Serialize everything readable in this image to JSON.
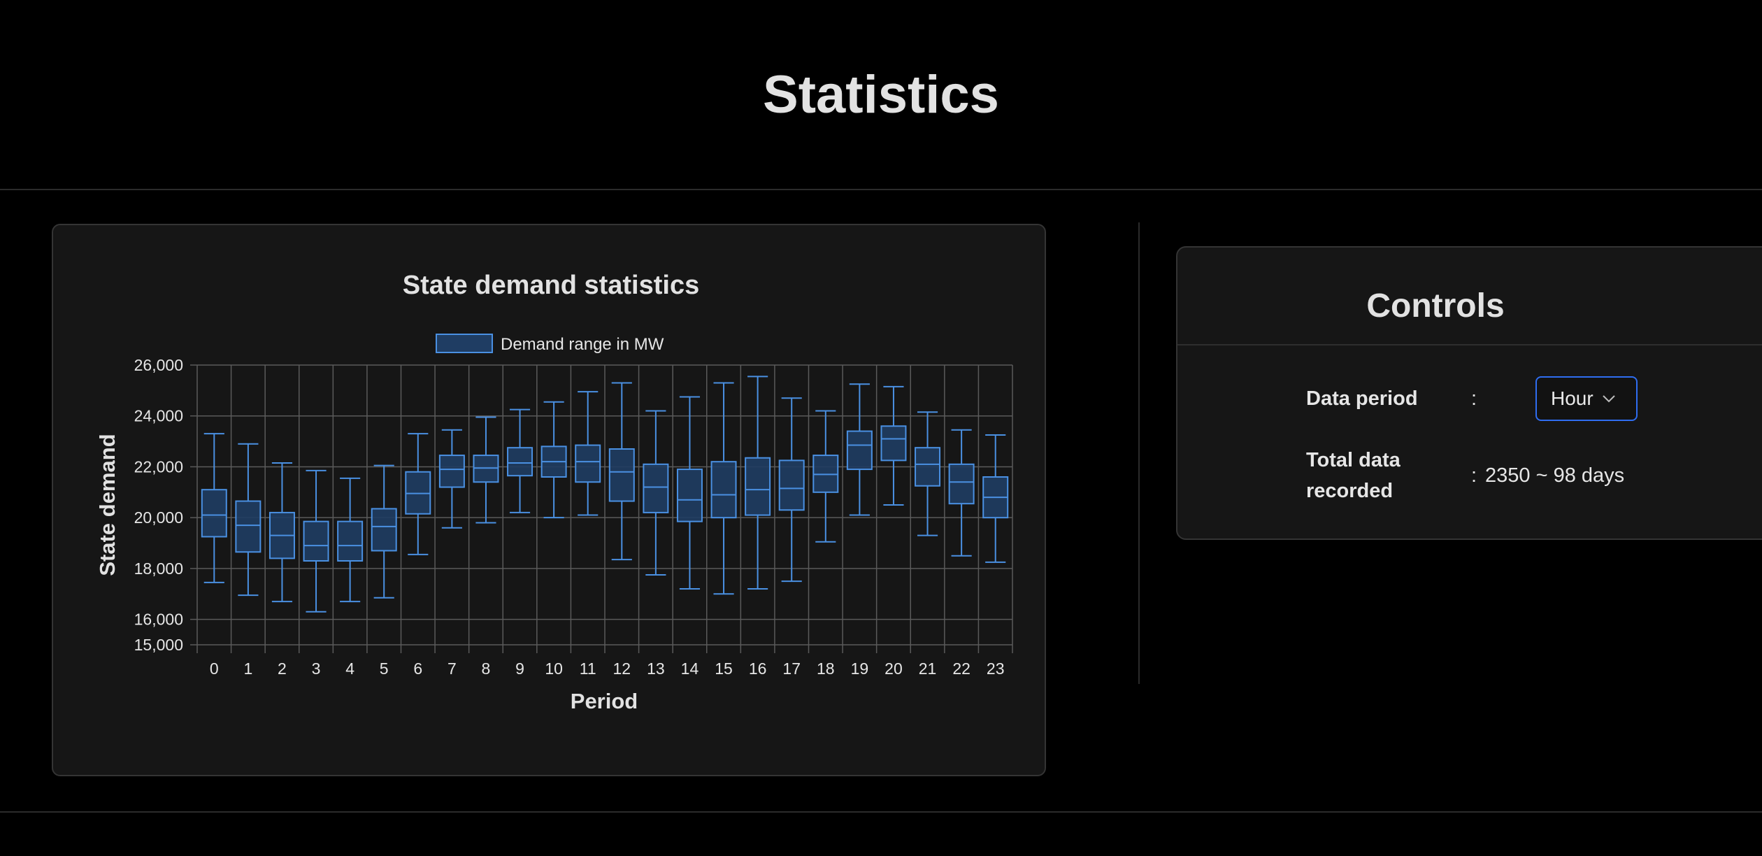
{
  "page": {
    "title": "Statistics"
  },
  "chart_card": {
    "title": "State demand statistics",
    "legend_label": "Demand range in MW",
    "xlabel": "Period",
    "ylabel": "State demand"
  },
  "chart_data": {
    "type": "boxplot",
    "title": "State demand statistics",
    "xlabel": "Period",
    "ylabel": "State demand",
    "ylim": [
      15000,
      26000
    ],
    "yticks": [
      "15,000",
      "16,000",
      "18,000",
      "20,000",
      "22,000",
      "24,000",
      "26,000"
    ],
    "ytick_values": [
      15000,
      16000,
      18000,
      20000,
      22000,
      24000,
      26000
    ],
    "legend": [
      {
        "name": "Demand range in MW",
        "placement": "top-center"
      }
    ],
    "grid": true,
    "categories": [
      "0",
      "1",
      "2",
      "3",
      "4",
      "5",
      "6",
      "7",
      "8",
      "9",
      "10",
      "11",
      "12",
      "13",
      "14",
      "15",
      "16",
      "17",
      "18",
      "19",
      "20",
      "21",
      "22",
      "23"
    ],
    "series": [
      {
        "name": "Demand range in MW",
        "color": "#4a90e2",
        "boxes": [
          {
            "min": 17450,
            "q1": 19250,
            "median": 20100,
            "q3": 21100,
            "max": 23300
          },
          {
            "min": 16950,
            "q1": 18650,
            "median": 19700,
            "q3": 20650,
            "max": 22900
          },
          {
            "min": 16700,
            "q1": 18400,
            "median": 19300,
            "q3": 20200,
            "max": 22150
          },
          {
            "min": 16300,
            "q1": 18300,
            "median": 18900,
            "q3": 19850,
            "max": 21850
          },
          {
            "min": 16700,
            "q1": 18300,
            "median": 18900,
            "q3": 19850,
            "max": 21550
          },
          {
            "min": 16850,
            "q1": 18700,
            "median": 19650,
            "q3": 20350,
            "max": 22050
          },
          {
            "min": 18550,
            "q1": 20150,
            "median": 20950,
            "q3": 21800,
            "max": 23300
          },
          {
            "min": 19600,
            "q1": 21200,
            "median": 21900,
            "q3": 22450,
            "max": 23450
          },
          {
            "min": 19800,
            "q1": 21400,
            "median": 21950,
            "q3": 22450,
            "max": 23950
          },
          {
            "min": 20200,
            "q1": 21650,
            "median": 22150,
            "q3": 22750,
            "max": 24250
          },
          {
            "min": 20000,
            "q1": 21600,
            "median": 22200,
            "q3": 22800,
            "max": 24550
          },
          {
            "min": 20100,
            "q1": 21400,
            "median": 22200,
            "q3": 22850,
            "max": 24950
          },
          {
            "min": 18350,
            "q1": 20650,
            "median": 21800,
            "q3": 22700,
            "max": 25300
          },
          {
            "min": 17750,
            "q1": 20200,
            "median": 21200,
            "q3": 22100,
            "max": 24200
          },
          {
            "min": 17200,
            "q1": 19850,
            "median": 20700,
            "q3": 21900,
            "max": 24750
          },
          {
            "min": 17000,
            "q1": 20000,
            "median": 20900,
            "q3": 22200,
            "max": 25300
          },
          {
            "min": 17200,
            "q1": 20100,
            "median": 21100,
            "q3": 22350,
            "max": 25550
          },
          {
            "min": 17500,
            "q1": 20300,
            "median": 21150,
            "q3": 22250,
            "max": 24700
          },
          {
            "min": 19050,
            "q1": 21000,
            "median": 21700,
            "q3": 22450,
            "max": 24200
          },
          {
            "min": 20100,
            "q1": 21900,
            "median": 22850,
            "q3": 23400,
            "max": 25250
          },
          {
            "min": 20500,
            "q1": 22250,
            "median": 23100,
            "q3": 23600,
            "max": 25150
          },
          {
            "min": 19300,
            "q1": 21250,
            "median": 22100,
            "q3": 22750,
            "max": 24150
          },
          {
            "min": 18500,
            "q1": 20550,
            "median": 21400,
            "q3": 22100,
            "max": 23450
          },
          {
            "min": 18250,
            "q1": 20000,
            "median": 20800,
            "q3": 21600,
            "max": 23250
          }
        ]
      }
    ]
  },
  "controls": {
    "title": "Controls",
    "data_period_label": "Data period",
    "data_period_colon": ":",
    "data_period_value": "Hour",
    "total_label_line1": "Total data",
    "total_label_line2": "recorded",
    "total_colon": ":",
    "total_value": "2350 ~ 98 days"
  },
  "colors": {
    "background": "#000000",
    "card": "#161616",
    "accent": "#2f6df0",
    "box_fill": "#1f3d63",
    "box_stroke": "#4a90e2",
    "grid": "#5a5a5a"
  }
}
